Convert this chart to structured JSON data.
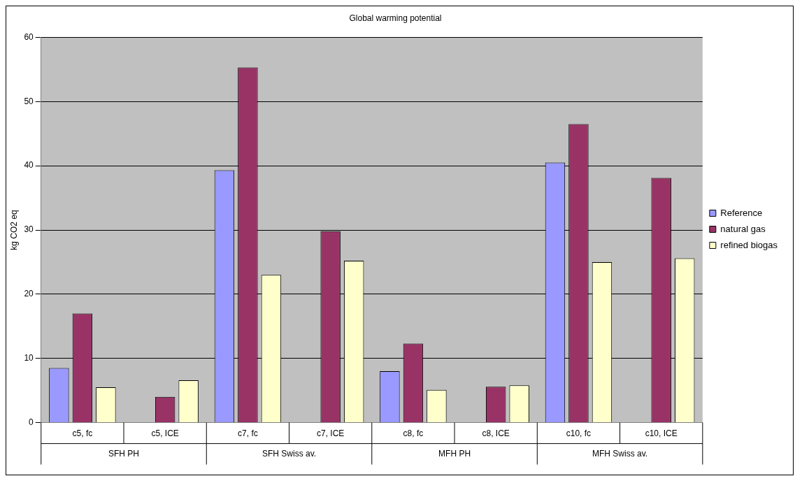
{
  "chart_data": {
    "type": "bar",
    "title": "Global warming potential",
    "ylabel": "kg CO2 eq",
    "categories": [
      "c5, fc",
      "c5, ICE",
      "c7, fc",
      "c7, ICE",
      "c8, fc",
      "c8, ICE",
      "c10, fc",
      "c10, ICE"
    ],
    "annotations": [
      "SFH PH",
      "SFH Swiss av.",
      "MFH PH",
      "MFH Swiss av."
    ],
    "series": [
      {
        "name": "Reference",
        "color": "#9999ff",
        "values": [
          8.5,
          null,
          39.3,
          null,
          8,
          null,
          40.5,
          null
        ]
      },
      {
        "name": "natural gas",
        "color": "#993366",
        "values": [
          17,
          4,
          55.3,
          29.8,
          12.3,
          5.6,
          46.5,
          38.1
        ]
      },
      {
        "name": "refined biogas",
        "color": "#ffffcc",
        "values": [
          5.5,
          6.6,
          23,
          25.2,
          5.1,
          5.8,
          25,
          25.6
        ]
      }
    ],
    "ylim": [
      0,
      60
    ],
    "yticks": [
      0,
      10,
      20,
      30,
      40,
      50,
      60
    ],
    "grid": "y",
    "legend": "right"
  }
}
